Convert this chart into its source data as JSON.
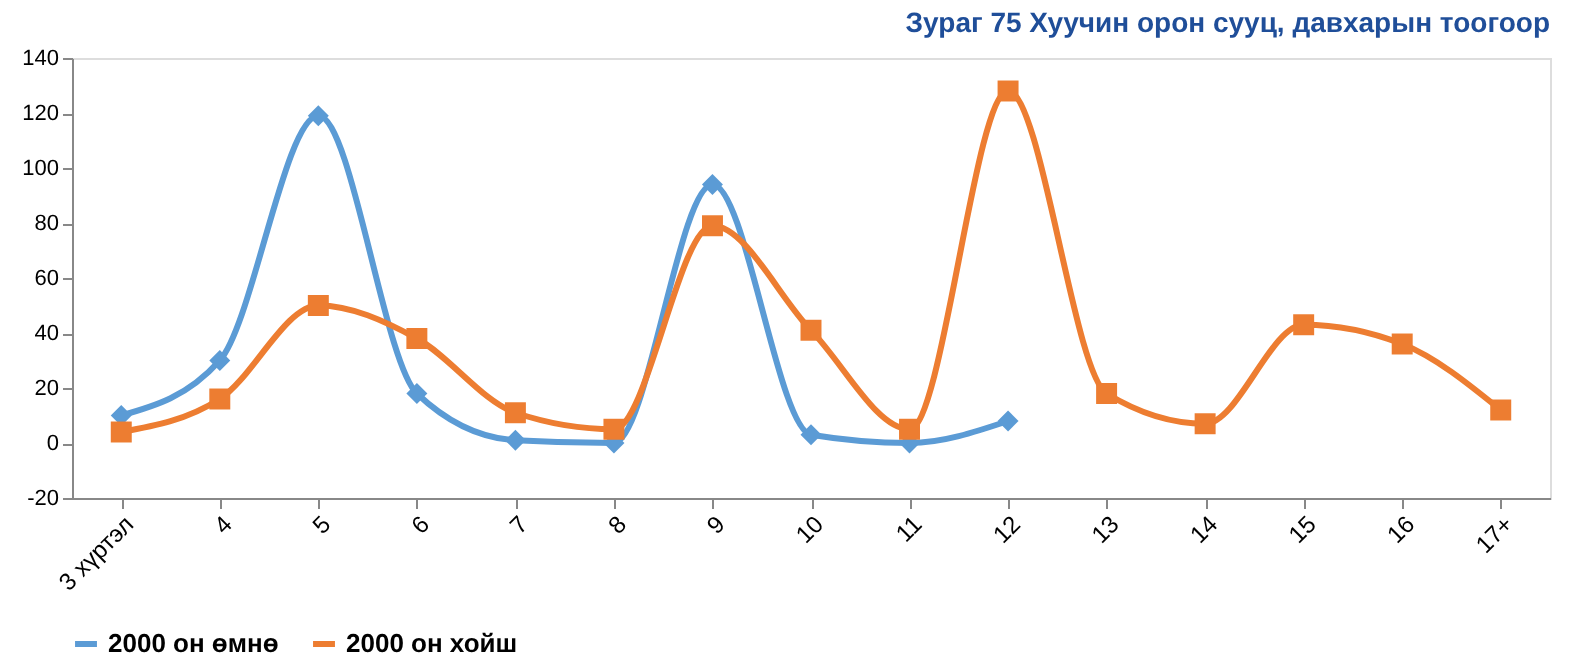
{
  "chart_data": {
    "type": "line",
    "title": "Зураг 75 Хуучин орон сууц, давхарын тоогоор",
    "categories": [
      "3 хүртэл",
      "4",
      "5",
      "6",
      "7",
      "8",
      "9",
      "10",
      "11",
      "12",
      "13",
      "14",
      "15",
      "16",
      "17+"
    ],
    "series": [
      {
        "name": "2000 он өмнө",
        "color": "#5b9bd5",
        "marker": "diamond",
        "values": [
          10,
          30,
          119,
          18,
          1,
          0,
          94,
          3,
          0,
          8,
          null,
          null,
          null,
          null,
          null
        ]
      },
      {
        "name": "2000 он хойш",
        "color": "#ed7d31",
        "marker": "square",
        "values": [
          4,
          16,
          50,
          38,
          11,
          5,
          79,
          41,
          5,
          128,
          18,
          7,
          43,
          36,
          12
        ]
      }
    ],
    "ylim": [
      -20,
      140
    ],
    "yticks": [
      -20,
      0,
      20,
      40,
      60,
      80,
      100,
      120,
      140
    ],
    "grid": false,
    "legend": "bottom"
  }
}
